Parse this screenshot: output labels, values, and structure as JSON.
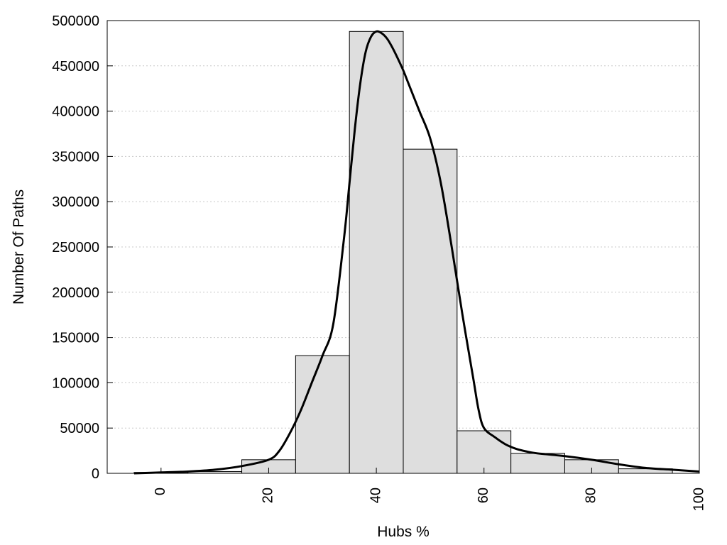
{
  "chart_data": {
    "type": "bar",
    "xlabel": "Hubs %",
    "ylabel": "Number Of Paths",
    "xlim": [
      -10,
      100
    ],
    "ylim": [
      0,
      500000
    ],
    "x_ticks": [
      "0",
      "20",
      "40",
      "60",
      "80",
      "100"
    ],
    "y_ticks": [
      "0",
      "50000",
      "100000",
      "150000",
      "200000",
      "250000",
      "300000",
      "350000",
      "400000",
      "450000",
      "500000"
    ],
    "grid": true,
    "bar_width": 10,
    "bars": {
      "x": [
        0,
        10,
        20,
        30,
        40,
        50,
        60,
        70,
        80,
        90
      ],
      "values": [
        1000,
        2000,
        15000,
        130000,
        488000,
        358000,
        47000,
        22000,
        15000,
        5000
      ]
    },
    "curve": {
      "x": [
        -5,
        0,
        5,
        10,
        15,
        20,
        22,
        24,
        26,
        28,
        30,
        32,
        34,
        35,
        36,
        37,
        38,
        39,
        40,
        41,
        42,
        43,
        44,
        45,
        46,
        48,
        50,
        52,
        54,
        56,
        58,
        59,
        60,
        62,
        64,
        66,
        68,
        70,
        75,
        80,
        85,
        90,
        95,
        100
      ],
      "values": [
        0,
        1000,
        2000,
        4000,
        8000,
        15000,
        25000,
        45000,
        70000,
        100000,
        130000,
        165000,
        260000,
        320000,
        380000,
        430000,
        465000,
        482000,
        488000,
        486000,
        480000,
        470000,
        458000,
        445000,
        430000,
        400000,
        370000,
        320000,
        250000,
        175000,
        105000,
        70000,
        50000,
        40000,
        32000,
        27000,
        24000,
        22000,
        19000,
        15000,
        10000,
        6000,
        4000,
        2000
      ]
    },
    "colors": {
      "bar_fill": "#dedede",
      "bar_stroke": "#000000",
      "curve": "#000000",
      "grid": "#c8c8c8"
    }
  }
}
